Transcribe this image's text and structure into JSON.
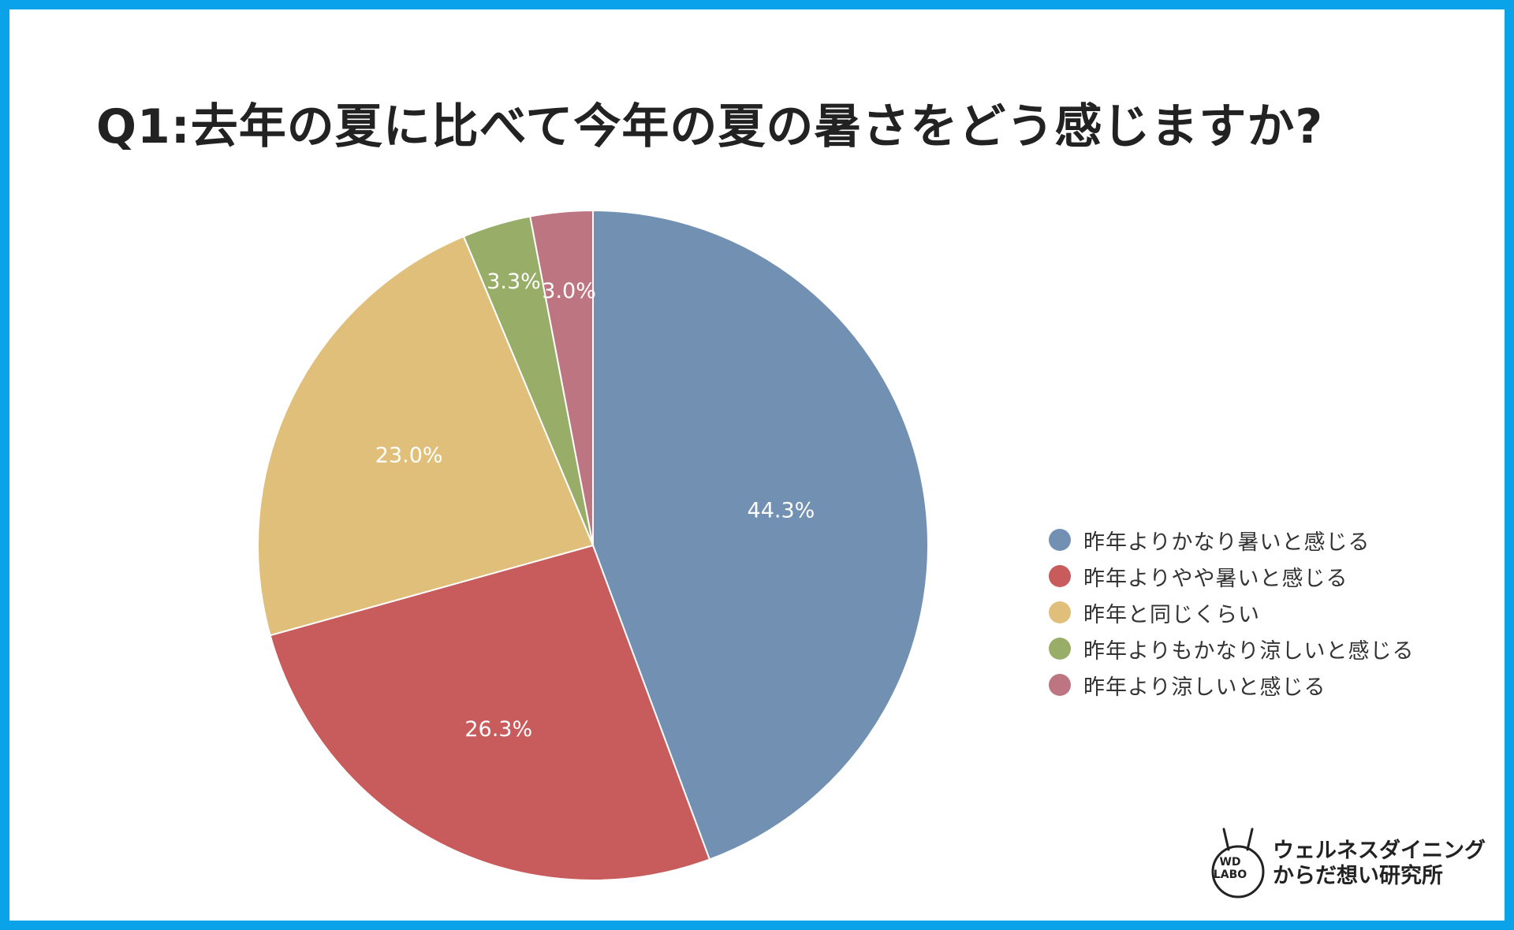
{
  "title": "Q1:去年の夏に比べて今年の夏の暑さをどう感じますか?",
  "chart_data": {
    "type": "pie",
    "title": "Q1:去年の夏に比べて今年の夏の暑さをどう感じますか?",
    "categories": [
      "昨年よりかなり暑いと感じる",
      "昨年よりやや暑いと感じる",
      "昨年と同じくらい",
      "昨年よりもかなり涼しいと感じる",
      "昨年より涼しいと感じる"
    ],
    "values": [
      44.3,
      26.3,
      23.0,
      3.3,
      3.0
    ],
    "labels": [
      "44.3%",
      "26.3%",
      "23.0%",
      "3.3%",
      "3.0%"
    ],
    "colors": [
      "#7291b2",
      "#c85b5b",
      "#e0bf7b",
      "#97ad68",
      "#bd7681"
    ],
    "start": "top (12 o'clock)",
    "direction": "clockwise",
    "legend_position": "right"
  },
  "legend": {
    "items": [
      {
        "label": "昨年よりかなり暑いと感じる",
        "color": "#7291b2"
      },
      {
        "label": "昨年よりやや暑いと感じる",
        "color": "#c85b5b"
      },
      {
        "label": "昨年と同じくらい",
        "color": "#e0bf7b"
      },
      {
        "label": "昨年よりもかなり涼しいと感じる",
        "color": "#97ad68"
      },
      {
        "label": "昨年より涼しいと感じる",
        "color": "#bd7681"
      }
    ]
  },
  "brand": {
    "badge_line1": "WD",
    "badge_line2": "LABO",
    "line1": "ウェルネスダイニング",
    "line2": "からだ想い研究所"
  },
  "frame_color": "#0aa2e8"
}
